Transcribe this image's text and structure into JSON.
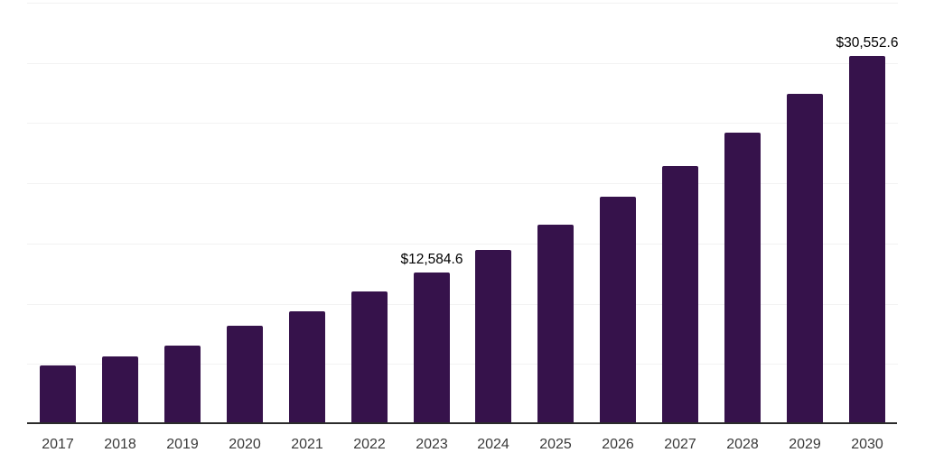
{
  "chart_data": {
    "type": "bar",
    "title": "",
    "xlabel": "",
    "ylabel": "",
    "categories": [
      "2017",
      "2018",
      "2019",
      "2020",
      "2021",
      "2022",
      "2023",
      "2024",
      "2025",
      "2026",
      "2027",
      "2028",
      "2029",
      "2030"
    ],
    "values": [
      4900,
      5650,
      6550,
      8150,
      9350,
      11000,
      12584.6,
      14500,
      16550,
      18850,
      21400,
      24200,
      27400,
      30552.6
    ],
    "data_labels": [
      {
        "category": "2023",
        "text": "$12,584.6"
      },
      {
        "category": "2030",
        "text": "$30,552.6"
      }
    ],
    "ylim": [
      0,
      35000
    ],
    "gridline_step": 5000,
    "grid": "horizontal",
    "legend_position": "none",
    "x_tick_labels": [
      "2017",
      "2018",
      "2019",
      "2020",
      "2021",
      "2022",
      "2023",
      "2024",
      "2025",
      "2026",
      "2027",
      "2028",
      "2029",
      "2030"
    ]
  },
  "colors": {
    "background": "#FFFFFF",
    "bar": "#36124B",
    "gridline": "#F2F2F2",
    "axis_line": "#2B2B2B",
    "x_tick_label": "#3A3A3A",
    "data_label": "#000000"
  }
}
